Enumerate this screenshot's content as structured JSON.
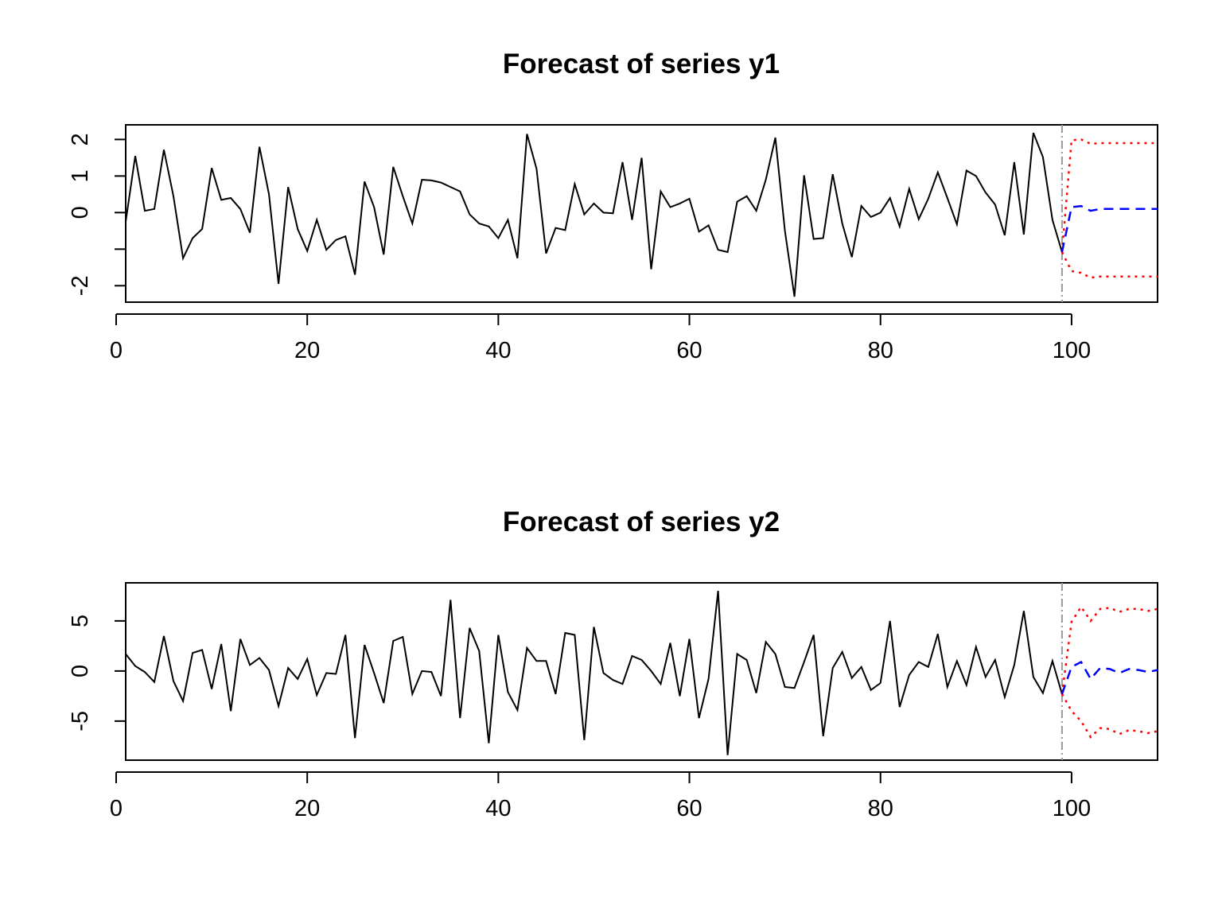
{
  "colors": {
    "observed": "#000000",
    "forecast": "#0000ff",
    "bounds": "#ff0000",
    "vline": "#999999"
  },
  "chart_data": [
    {
      "type": "line",
      "title": "Forecast of series y1",
      "xlabel": "",
      "ylabel": "",
      "xlim": [
        1,
        109
      ],
      "ylim": [
        -2.45,
        2.4
      ],
      "xticks": [
        0,
        20,
        40,
        60,
        80,
        100
      ],
      "yticks": [
        -2,
        0,
        1,
        2
      ],
      "ytick_labels": [
        "-2",
        "",
        "0",
        "1",
        "2"
      ],
      "ytick_values_all": [
        -2,
        -1,
        0,
        1,
        2
      ],
      "forecast_start": 99,
      "observed": {
        "x_start": 1,
        "values": [
          -0.25,
          1.55,
          0.05,
          0.1,
          1.72,
          0.45,
          -1.25,
          -0.7,
          -0.45,
          1.22,
          0.35,
          0.4,
          0.1,
          -0.55,
          1.8,
          0.5,
          -1.95,
          0.7,
          -0.45,
          -1.05,
          -0.2,
          -1.02,
          -0.75,
          -0.65,
          -1.7,
          0.85,
          0.15,
          -1.15,
          1.25,
          0.45,
          -0.3,
          0.9,
          0.88,
          0.82,
          0.7,
          0.58,
          -0.05,
          -0.3,
          -0.38,
          -0.7,
          -0.2,
          -1.25,
          2.15,
          1.2,
          -1.12,
          -0.42,
          -0.48,
          0.78,
          -0.05,
          0.25,
          0,
          -0.02,
          1.38,
          -0.2,
          1.5,
          -1.55,
          0.58,
          0.15,
          0.25,
          0.38,
          -0.52,
          -0.35,
          -1.02,
          -1.08,
          0.3,
          0.45,
          0.05,
          0.9,
          2.05,
          -0.5,
          -2.3,
          1.02,
          -0.72,
          -0.7,
          1.05,
          -0.3,
          -1.22,
          0.18,
          -0.12,
          0,
          0.4,
          -0.38,
          0.65,
          -0.18,
          0.38,
          1.1,
          0.4,
          -0.32,
          1.15,
          1.0,
          0.55,
          0.22,
          -0.62,
          1.38,
          -0.6,
          2.18,
          1.52,
          -0.2,
          -1.08
        ]
      },
      "forecast": {
        "x_start": 99,
        "values": [
          -1.08,
          0.15,
          0.18,
          0.05,
          0.1,
          0.1,
          0.1,
          0.1,
          0.1,
          0.1,
          0.1
        ]
      },
      "upper": {
        "x_start": 99,
        "values": [
          -1.08,
          1.98,
          2.0,
          1.88,
          1.9,
          1.9,
          1.9,
          1.9,
          1.9,
          1.9,
          1.9
        ]
      },
      "lower": {
        "x_start": 99,
        "values": [
          -1.08,
          -1.6,
          -1.65,
          -1.78,
          -1.75,
          -1.75,
          -1.75,
          -1.75,
          -1.75,
          -1.75,
          -1.75
        ]
      }
    },
    {
      "type": "line",
      "title": "Forecast of series y2",
      "xlabel": "",
      "ylabel": "",
      "xlim": [
        1,
        109
      ],
      "ylim": [
        -8.9,
        8.8
      ],
      "xticks": [
        0,
        20,
        40,
        60,
        80,
        100
      ],
      "yticks": [
        -5,
        0,
        5
      ],
      "ytick_labels": [
        "-5",
        "0",
        "5"
      ],
      "ytick_values_all": [
        -5,
        0,
        5
      ],
      "forecast_start": 99,
      "observed": {
        "x_start": 1,
        "values": [
          1.7,
          0.5,
          -0.1,
          -1.1,
          3.5,
          -1.0,
          -3.0,
          1.8,
          2.1,
          -1.8,
          2.7,
          -4.0,
          3.2,
          0.6,
          1.3,
          0.1,
          -3.5,
          0.3,
          -0.8,
          1.2,
          -2.4,
          -0.2,
          -0.3,
          3.6,
          -6.7,
          2.6,
          -0.2,
          -3.2,
          3.0,
          3.4,
          -2.3,
          0.0,
          -0.1,
          -2.5,
          7.1,
          -4.7,
          4.3,
          2.0,
          -7.2,
          3.6,
          -2.1,
          -3.9,
          2.3,
          1.0,
          1.0,
          -2.3,
          3.8,
          3.6,
          -6.9,
          4.4,
          -0.2,
          -0.9,
          -1.3,
          1.5,
          1.1,
          0.0,
          -1.3,
          2.8,
          -2.5,
          3.2,
          -4.7,
          -0.8,
          8.0,
          -8.4,
          1.7,
          1.1,
          -2.2,
          2.9,
          1.7,
          -1.6,
          -1.7,
          0.9,
          3.6,
          -6.5,
          0.3,
          1.9,
          -0.7,
          0.4,
          -1.9,
          -1.2,
          5.0,
          -3.6,
          -0.4,
          0.9,
          0.4,
          3.7,
          -1.6,
          1.0,
          -1.4,
          2.4,
          -0.6,
          1.1,
          -2.6,
          0.6,
          6.0,
          -0.6,
          -2.2,
          1.0,
          -2.3
        ]
      },
      "forecast": {
        "x_start": 99,
        "values": [
          -2.3,
          0.4,
          0.9,
          -0.8,
          0.3,
          0.2,
          -0.2,
          0.2,
          0.1,
          -0.1,
          0.1
        ]
      },
      "upper": {
        "x_start": 99,
        "values": [
          -2.3,
          4.9,
          6.4,
          5.0,
          6.2,
          6.3,
          5.9,
          6.2,
          6.2,
          6.0,
          6.2
        ]
      },
      "lower": {
        "x_start": 99,
        "values": [
          -2.3,
          -4.0,
          -5.0,
          -6.6,
          -5.7,
          -5.8,
          -6.3,
          -5.9,
          -6.0,
          -6.2,
          -6.0
        ]
      }
    }
  ]
}
